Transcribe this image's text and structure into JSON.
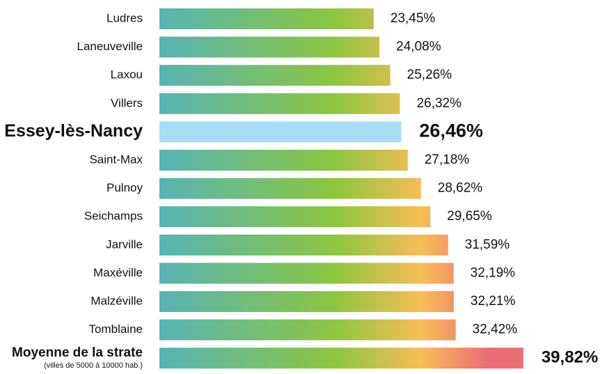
{
  "chart_data": {
    "type": "bar",
    "orientation": "horizontal",
    "categories": [
      "Ludres",
      "Laneuveville",
      "Laxou",
      "Villers",
      "Essey-lès-Nancy",
      "Saint-Max",
      "Pulnoy",
      "Seichamps",
      "Jarville",
      "Maxéville",
      "Malzéville",
      "Tomblaine",
      "Moyenne de la strate"
    ],
    "values": [
      23.45,
      24.08,
      25.26,
      26.32,
      26.46,
      27.18,
      28.62,
      29.65,
      31.59,
      32.19,
      32.21,
      32.42,
      39.82
    ],
    "value_labels": [
      "23,45%",
      "24,08%",
      "25,26%",
      "26,32%",
      "26,46%",
      "27,18%",
      "28,62%",
      "29,65%",
      "31,59%",
      "32,19%",
      "32,21%",
      "32,42%",
      "39,82%"
    ],
    "category_note": "(villes  de 5000 à 10000 hab.)",
    "gradient": [
      "#56b4b4",
      "#8cc63f",
      "#f8bd55",
      "#ec6e74"
    ],
    "highlight": 4,
    "highlight_color": "#a6dcf5",
    "reference": 12
  }
}
